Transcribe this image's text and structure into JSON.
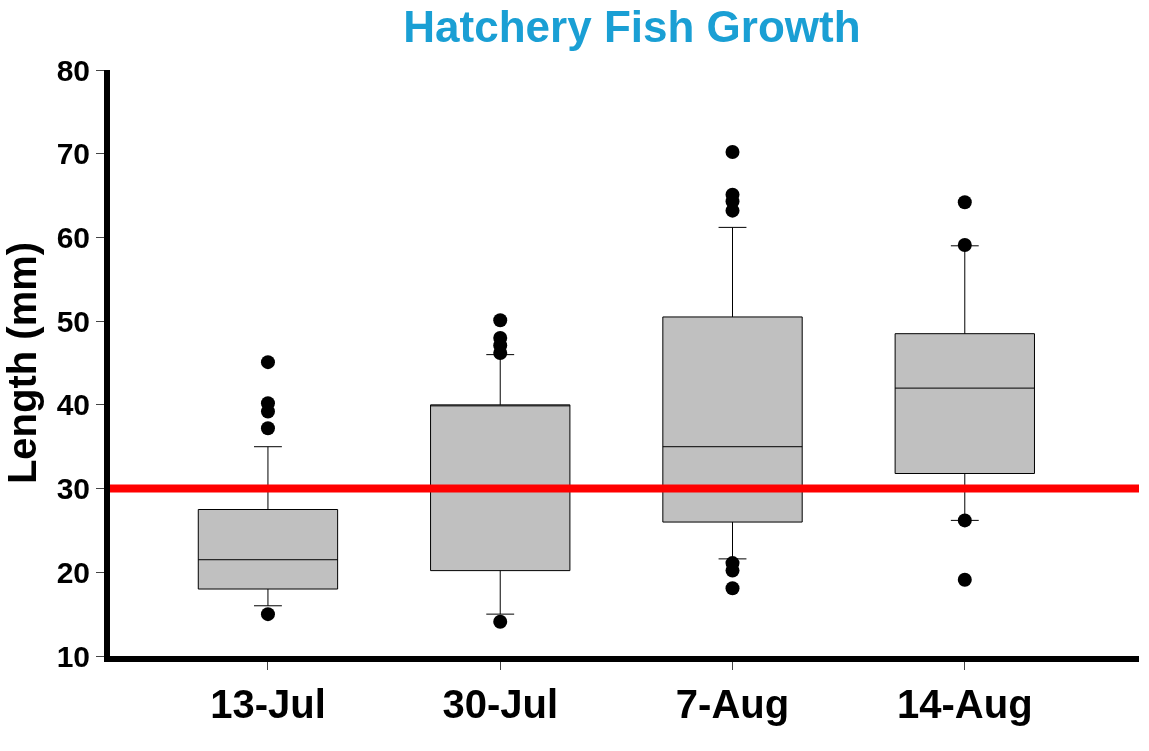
{
  "chart_data": {
    "type": "box",
    "title": "Hatchery Fish Growth",
    "ylabel": "Length (mm)",
    "categories": [
      "13-Jul",
      "30-Jul",
      "7-Aug",
      "14-Aug"
    ],
    "boxes": [
      {
        "low": 16,
        "q1": 18,
        "median": 21.5,
        "q3": 27.5,
        "high": 35,
        "outliers": [
          15,
          37.2,
          39.2,
          40.2,
          45.1
        ]
      },
      {
        "low": 15,
        "q1": 20.2,
        "median": 40,
        "q3": 40,
        "high": 46,
        "outliers": [
          14.1,
          46.2,
          47.1,
          48,
          50.1
        ]
      },
      {
        "low": 21.6,
        "q1": 26,
        "median": 35,
        "q3": 50.5,
        "high": 61.2,
        "outliers": [
          18.1,
          20.2,
          21.1,
          63.2,
          64.3,
          65.1,
          70.2
        ]
      },
      {
        "low": 26.2,
        "q1": 31.8,
        "median": 42,
        "q3": 48.5,
        "high": 59,
        "outliers": [
          19.1,
          26.2,
          59.1,
          64.2
        ]
      }
    ],
    "color": "#c0c0c0",
    "ylim": [
      10,
      80
    ],
    "yticks": [
      10,
      20,
      30,
      40,
      50,
      60,
      70,
      80
    ],
    "ref_lines": [
      {
        "axis": "y",
        "value": 30,
        "color": "#ff0000"
      }
    ]
  }
}
